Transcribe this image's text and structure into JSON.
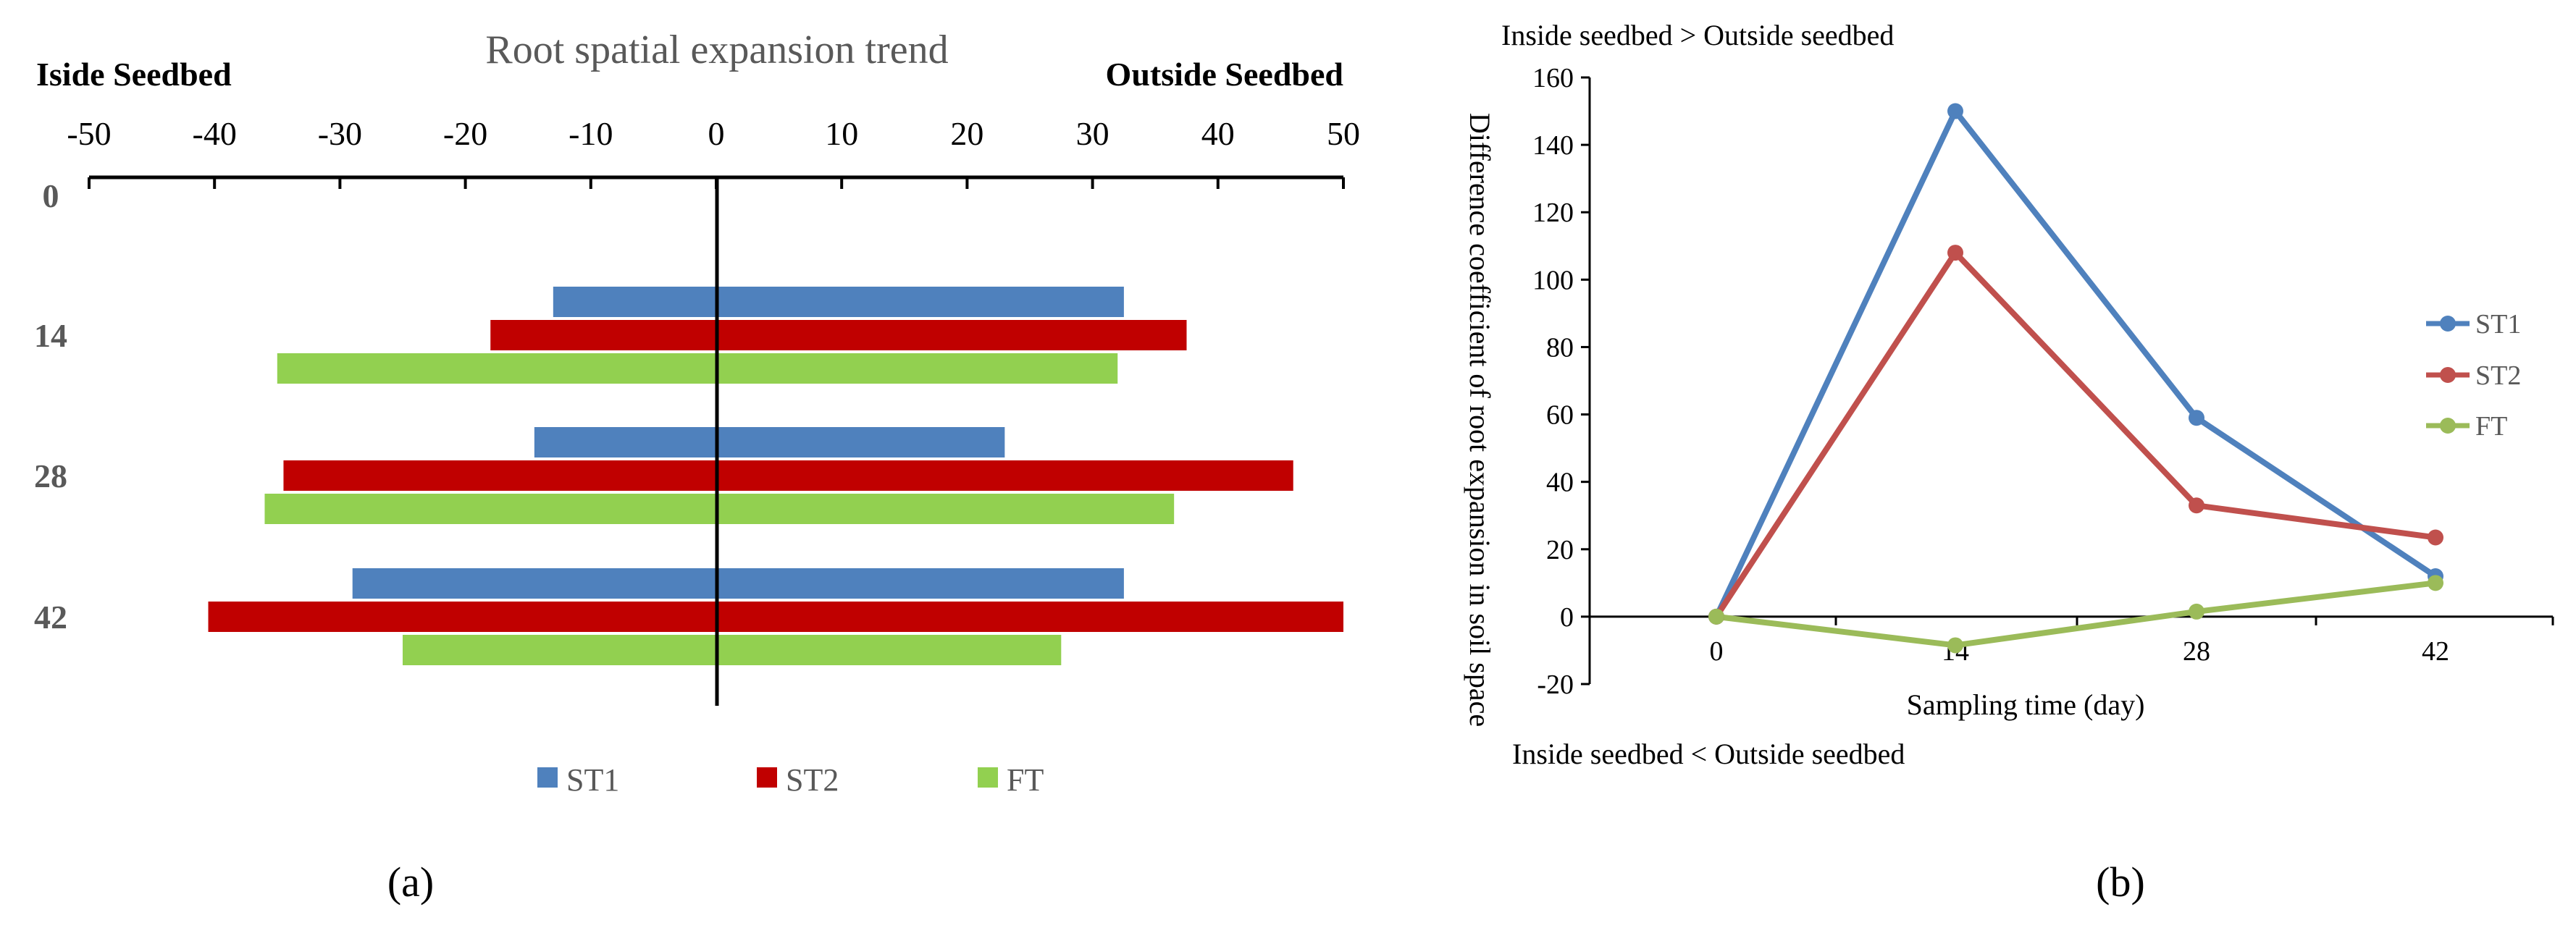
{
  "colors": {
    "ST1": "#4F81BD",
    "ST2": "#C00000",
    "FT": "#92D050",
    "ST2_line": "#C0504D",
    "FT_line": "#9BBB59",
    "axis": "#000000",
    "title_gray": "#595959"
  },
  "chart_data": [
    {
      "type": "bar",
      "orientation": "horizontal-diverging",
      "panel_label": "(a)",
      "title": "Root spatial expansion trend",
      "left_label": "Iside Seedbed",
      "right_label": "Outside Seedbed",
      "xlim": [
        -50,
        50
      ],
      "xticks": [
        -50,
        -40,
        -30,
        -20,
        -10,
        0,
        10,
        20,
        30,
        40,
        50
      ],
      "categories": [
        "0",
        "14",
        "28",
        "42"
      ],
      "series": [
        {
          "name": "ST1",
          "inside": [
            0,
            -13,
            -14.5,
            -29
          ],
          "outside": [
            0,
            32.5,
            23,
            32.5
          ]
        },
        {
          "name": "ST2",
          "inside": [
            0,
            -18,
            -34.5,
            -40.5
          ],
          "outside": [
            0,
            37.5,
            46,
            50
          ]
        },
        {
          "name": "FT",
          "inside": [
            0,
            -35,
            -36,
            -25
          ],
          "outside": [
            0,
            32,
            36.5,
            27.5
          ]
        }
      ],
      "legend": [
        "ST1",
        "ST2",
        "FT"
      ],
      "legend_position": "bottom"
    },
    {
      "type": "line",
      "panel_label": "(b)",
      "xlabel": "Sampling time (day)",
      "ylabel": "Difference coefficient of root expansion in soil space",
      "top_note": "Inside seedbed > Outside seedbed",
      "bottom_note": "Inside seedbed < Outside seedbed",
      "x": [
        0,
        14,
        28,
        42
      ],
      "xticks": [
        "0",
        "14",
        "28",
        "42"
      ],
      "ylim": [
        -20,
        160
      ],
      "yticks": [
        "-20",
        "0",
        "20",
        "40",
        "60",
        "80",
        "100",
        "120",
        "140",
        "160"
      ],
      "series": [
        {
          "name": "ST1",
          "values": [
            0,
            150,
            59,
            12
          ]
        },
        {
          "name": "ST2",
          "values": [
            0,
            108,
            33,
            23.5
          ]
        },
        {
          "name": "FT",
          "values": [
            0,
            -8.5,
            1.5,
            10
          ]
        }
      ],
      "legend_position": "right"
    }
  ]
}
